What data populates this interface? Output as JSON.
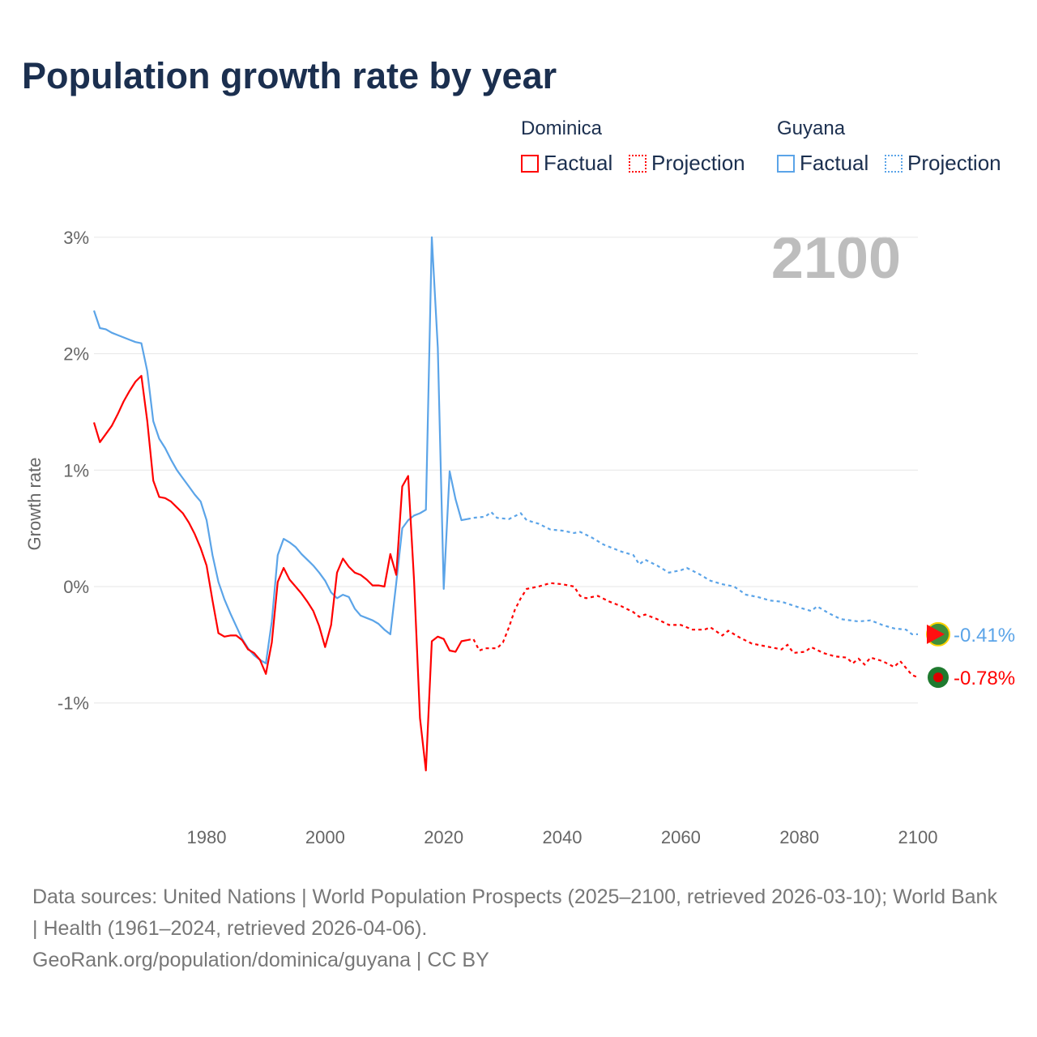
{
  "title": "Population growth rate by year",
  "legend": {
    "groups": [
      {
        "name": "Dominica",
        "color": "#ff0000",
        "factual": "Factual",
        "projection": "Projection"
      },
      {
        "name": "Guyana",
        "color": "#5ba4e8",
        "factual": "Factual",
        "projection": "Projection"
      }
    ]
  },
  "year_label": "2100",
  "source": {
    "line1": "Data sources: United Nations | World Population Prospects (2025–2100, retrieved 2026-03-10); World Bank | Health (1961–2024, retrieved 2026-04-06).",
    "line2": "GeoRank.org/population/dominica/guyana | CC BY"
  },
  "chart_data": {
    "type": "line",
    "title": "Population growth rate by year",
    "xlabel": "",
    "ylabel": "Growth rate",
    "xlim": [
      1961,
      2100
    ],
    "ylim": [
      -1.8,
      3.2
    ],
    "x_ticks": [
      1980,
      2000,
      2020,
      2040,
      2060,
      2080,
      2100
    ],
    "y_ticks": [
      {
        "v": 3,
        "label": "3%"
      },
      {
        "v": 2,
        "label": "2%"
      },
      {
        "v": 1,
        "label": "1%"
      },
      {
        "v": 0,
        "label": "0%"
      },
      {
        "v": -1,
        "label": "-1%"
      }
    ],
    "grid": true,
    "series": [
      {
        "name": "Guyana",
        "color": "#5ba4e8",
        "end_label": "-0.41%",
        "factual_start": 1961,
        "factual": [
          2.37,
          2.22,
          2.21,
          2.18,
          2.16,
          2.14,
          2.12,
          2.1,
          2.09,
          1.85,
          1.42,
          1.27,
          1.19,
          1.09,
          1.0,
          0.93,
          0.86,
          0.79,
          0.73,
          0.57,
          0.27,
          0.04,
          -0.11,
          -0.23,
          -0.34,
          -0.45,
          -0.53,
          -0.59,
          -0.63,
          -0.66,
          -0.3,
          0.27,
          0.41,
          0.38,
          0.34,
          0.28,
          0.23,
          0.18,
          0.12,
          0.05,
          -0.05,
          -0.1,
          -0.07,
          -0.09,
          -0.19,
          -0.25,
          -0.27,
          -0.29,
          -0.32,
          -0.37,
          -0.41,
          0.03,
          0.5,
          0.57,
          0.61,
          0.63,
          0.66,
          3.0,
          2.05,
          -0.02,
          0.99,
          0.75,
          0.57,
          0.58
        ],
        "projection": [
          [
            2024,
            0.58
          ],
          [
            2025,
            0.59
          ],
          [
            2027,
            0.6
          ],
          [
            2028,
            0.64
          ],
          [
            2029,
            0.59
          ],
          [
            2031,
            0.58
          ],
          [
            2033,
            0.63
          ],
          [
            2034,
            0.57
          ],
          [
            2036,
            0.54
          ],
          [
            2038,
            0.49
          ],
          [
            2040,
            0.48
          ],
          [
            2042,
            0.46
          ],
          [
            2043,
            0.47
          ],
          [
            2045,
            0.42
          ],
          [
            2047,
            0.36
          ],
          [
            2050,
            0.3
          ],
          [
            2052,
            0.27
          ],
          [
            2053,
            0.19
          ],
          [
            2054,
            0.23
          ],
          [
            2056,
            0.18
          ],
          [
            2058,
            0.12
          ],
          [
            2060,
            0.14
          ],
          [
            2061,
            0.16
          ],
          [
            2063,
            0.11
          ],
          [
            2065,
            0.05
          ],
          [
            2067,
            0.02
          ],
          [
            2069,
            0.0
          ],
          [
            2071,
            -0.07
          ],
          [
            2073,
            -0.09
          ],
          [
            2075,
            -0.12
          ],
          [
            2077,
            -0.13
          ],
          [
            2080,
            -0.18
          ],
          [
            2082,
            -0.21
          ],
          [
            2083,
            -0.17
          ],
          [
            2085,
            -0.23
          ],
          [
            2087,
            -0.28
          ],
          [
            2090,
            -0.3
          ],
          [
            2092,
            -0.29
          ],
          [
            2094,
            -0.33
          ],
          [
            2096,
            -0.36
          ],
          [
            2098,
            -0.37
          ],
          [
            2099,
            -0.41
          ],
          [
            2100,
            -0.41
          ]
        ]
      },
      {
        "name": "Dominica",
        "color": "#ff0000",
        "end_label": "-0.78%",
        "factual_start": 1961,
        "factual": [
          1.41,
          1.24,
          1.31,
          1.38,
          1.48,
          1.59,
          1.68,
          1.76,
          1.81,
          1.42,
          0.91,
          0.77,
          0.76,
          0.73,
          0.68,
          0.63,
          0.55,
          0.45,
          0.33,
          0.18,
          -0.12,
          -0.4,
          -0.43,
          -0.42,
          -0.42,
          -0.46,
          -0.54,
          -0.57,
          -0.63,
          -0.75,
          -0.48,
          0.04,
          0.16,
          0.06,
          0.0,
          -0.06,
          -0.13,
          -0.21,
          -0.34,
          -0.52,
          -0.33,
          0.12,
          0.24,
          0.17,
          0.12,
          0.1,
          0.06,
          0.01,
          0.01,
          0.0,
          0.28,
          0.1,
          0.86,
          0.95,
          0.05,
          -1.13,
          -1.58,
          -0.47,
          -0.43,
          -0.45,
          -0.55,
          -0.56,
          -0.47,
          -0.46
        ],
        "projection": [
          [
            2024,
            -0.46
          ],
          [
            2025,
            -0.45
          ],
          [
            2026,
            -0.55
          ],
          [
            2027,
            -0.53
          ],
          [
            2029,
            -0.53
          ],
          [
            2030,
            -0.48
          ],
          [
            2031,
            -0.35
          ],
          [
            2032,
            -0.2
          ],
          [
            2033,
            -0.1
          ],
          [
            2034,
            -0.02
          ],
          [
            2036,
            0.0
          ],
          [
            2038,
            0.03
          ],
          [
            2040,
            0.02
          ],
          [
            2042,
            0.0
          ],
          [
            2043,
            -0.08
          ],
          [
            2044,
            -0.1
          ],
          [
            2046,
            -0.08
          ],
          [
            2048,
            -0.13
          ],
          [
            2050,
            -0.17
          ],
          [
            2052,
            -0.22
          ],
          [
            2053,
            -0.26
          ],
          [
            2054,
            -0.24
          ],
          [
            2056,
            -0.28
          ],
          [
            2058,
            -0.33
          ],
          [
            2060,
            -0.33
          ],
          [
            2062,
            -0.37
          ],
          [
            2064,
            -0.37
          ],
          [
            2065,
            -0.35
          ],
          [
            2067,
            -0.42
          ],
          [
            2068,
            -0.38
          ],
          [
            2070,
            -0.44
          ],
          [
            2072,
            -0.49
          ],
          [
            2075,
            -0.52
          ],
          [
            2077,
            -0.54
          ],
          [
            2078,
            -0.5
          ],
          [
            2079,
            -0.57
          ],
          [
            2081,
            -0.56
          ],
          [
            2082,
            -0.52
          ],
          [
            2084,
            -0.57
          ],
          [
            2086,
            -0.6
          ],
          [
            2088,
            -0.61
          ],
          [
            2089,
            -0.66
          ],
          [
            2090,
            -0.62
          ],
          [
            2091,
            -0.67
          ],
          [
            2092,
            -0.61
          ],
          [
            2094,
            -0.64
          ],
          [
            2096,
            -0.69
          ],
          [
            2097,
            -0.64
          ],
          [
            2099,
            -0.76
          ],
          [
            2100,
            -0.78
          ]
        ]
      }
    ]
  }
}
